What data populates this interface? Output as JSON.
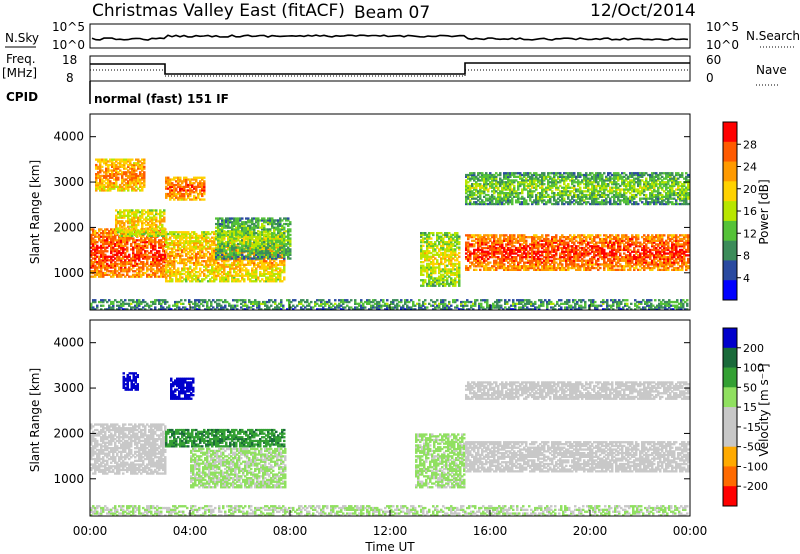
{
  "header": {
    "station": "Christmas Valley East (fitACF)",
    "beam": "Beam 07",
    "date": "12/Oct/2014"
  },
  "noise_panel": {
    "left_label": "N.Sky",
    "left_ticks": [
      "10^5",
      "10^0"
    ],
    "right_label": "N.Search",
    "right_ticks": [
      "10^5",
      "10^0"
    ]
  },
  "freq_panel": {
    "left_label_1": "Freq.",
    "left_label_2": "[MHz]",
    "left_ticks": [
      "18",
      "8"
    ],
    "right_label": "Nave",
    "right_ticks": [
      "60",
      "0"
    ],
    "cpid_label": "CPID",
    "cpid_text": "normal (fast) 151 IF"
  },
  "colors": {
    "power": [
      "#0000ff",
      "#2a4aa0",
      "#3c8c5a",
      "#55c238",
      "#b8e600",
      "#ffd200",
      "#ff9a00",
      "#ff5a00",
      "#ff0000"
    ],
    "velocity": [
      "#ff0000",
      "#ff6a00",
      "#ffaa00",
      "#c8c8c8",
      "#c8c8c8",
      "#90e060",
      "#33a033",
      "#1a6a3a",
      "#0000cc"
    ]
  },
  "chart_data": [
    {
      "type": "heatmap",
      "name": "power",
      "ylabel": "Slant Range [km]",
      "yticks": [
        1000,
        2000,
        3000,
        4000
      ],
      "ylim": [
        180,
        4500
      ],
      "xlim": [
        0,
        24
      ],
      "colorbar": {
        "label": "Power [dB]",
        "ticks": [
          "28",
          "24",
          "20",
          "16",
          "12",
          "8",
          "4"
        ],
        "range": [
          0,
          32
        ]
      },
      "echo_regions": [
        {
          "t0": 0.0,
          "t1": 3.0,
          "r0": 900,
          "r1": 1950,
          "val": 26
        },
        {
          "t0": 0.2,
          "t1": 2.2,
          "r0": 2800,
          "r1": 3500,
          "val": 22
        },
        {
          "t0": 1.0,
          "t1": 3.0,
          "r0": 1800,
          "r1": 2400,
          "val": 18
        },
        {
          "t0": 3.0,
          "t1": 7.8,
          "r0": 800,
          "r1": 1900,
          "val": 20
        },
        {
          "t0": 3.0,
          "t1": 4.6,
          "r0": 2600,
          "r1": 3100,
          "val": 24
        },
        {
          "t0": 5.0,
          "t1": 8.0,
          "r0": 1300,
          "r1": 2200,
          "val": 12
        },
        {
          "t0": 13.2,
          "t1": 14.8,
          "r0": 700,
          "r1": 1900,
          "val": 16
        },
        {
          "t0": 15.0,
          "t1": 23.9,
          "r0": 1050,
          "r1": 1850,
          "val": 26
        },
        {
          "t0": 15.0,
          "t1": 23.9,
          "r0": 2500,
          "r1": 3200,
          "val": 12
        },
        {
          "t0": 0.0,
          "t1": 23.9,
          "r0": 180,
          "r1": 420,
          "val": 9
        }
      ]
    },
    {
      "type": "heatmap",
      "name": "velocity",
      "xlabel": "Time UT",
      "ylabel": "Slant Range [km]",
      "yticks": [
        1000,
        2000,
        3000,
        4000
      ],
      "ylim": [
        180,
        4500
      ],
      "xlim": [
        0,
        24
      ],
      "xticks": [
        "00:00",
        "04:00",
        "08:00",
        "12:00",
        "16:00",
        "20:00",
        "00:00"
      ],
      "colorbar": {
        "label": "Velocity [m s⁻¹]",
        "ticks": [
          "200",
          "100",
          "50",
          "15",
          "-15",
          "-50",
          "-100",
          "-200"
        ],
        "range": [
          -250,
          250
        ]
      },
      "echo_regions": [
        {
          "t0": 0.0,
          "t1": 3.0,
          "r0": 1100,
          "r1": 2200,
          "val": 0
        },
        {
          "t0": 1.3,
          "t1": 1.9,
          "r0": 2950,
          "r1": 3350,
          "val": 230
        },
        {
          "t0": 3.2,
          "t1": 4.1,
          "r0": 2750,
          "r1": 3200,
          "val": 230
        },
        {
          "t0": 3.0,
          "t1": 7.8,
          "r0": 1700,
          "r1": 2100,
          "val": 130
        },
        {
          "t0": 4.0,
          "t1": 7.8,
          "r0": 800,
          "r1": 1650,
          "val": 35
        },
        {
          "t0": 13.0,
          "t1": 15.0,
          "r0": 800,
          "r1": 2000,
          "val": 40
        },
        {
          "t0": 15.0,
          "t1": 23.9,
          "r0": 1150,
          "r1": 1800,
          "val": 0
        },
        {
          "t0": 15.0,
          "t1": 23.9,
          "r0": 2750,
          "r1": 3150,
          "val": 0
        },
        {
          "t0": 0.0,
          "t1": 23.9,
          "r0": 180,
          "r1": 400,
          "val": 30
        }
      ]
    }
  ]
}
